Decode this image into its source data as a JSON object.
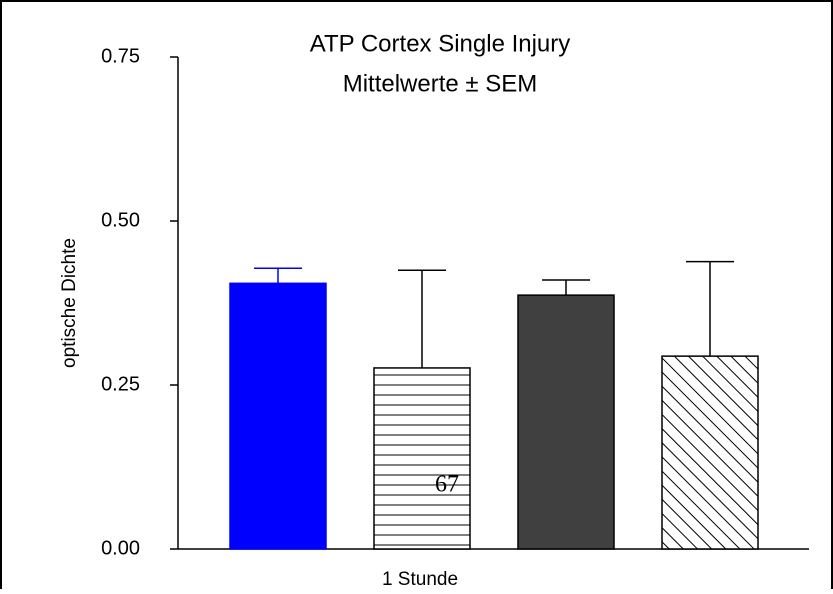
{
  "chart_data": {
    "type": "bar",
    "title": [
      "ATP Cortex Single Injury",
      "Mittelwerte ± SEM"
    ],
    "ylabel": "optische Dichte",
    "xlabel": "1 Stunde",
    "annotation": "67",
    "ylim": [
      0,
      0.75
    ],
    "yticks": [
      {
        "value": 0,
        "label": "0.00"
      },
      {
        "value": 0.25,
        "label": "0.25"
      },
      {
        "value": 0.5,
        "label": "0.50"
      },
      {
        "value": 0.75,
        "label": "0.75"
      }
    ],
    "series": [
      {
        "color": "#0000ff",
        "pattern": "solid",
        "values": [
          0.405
        ],
        "errors": [
          0.023
        ]
      },
      {
        "color": "#ffffff",
        "pattern": "horizontal",
        "values": [
          0.276
        ],
        "errors": [
          0.149
        ]
      },
      {
        "color": "#404040",
        "pattern": "solid",
        "values": [
          0.387
        ],
        "errors": [
          0.023
        ]
      },
      {
        "color": "#ffffff",
        "pattern": "diagonal",
        "values": [
          0.294
        ],
        "errors": [
          0.144
        ]
      }
    ]
  }
}
